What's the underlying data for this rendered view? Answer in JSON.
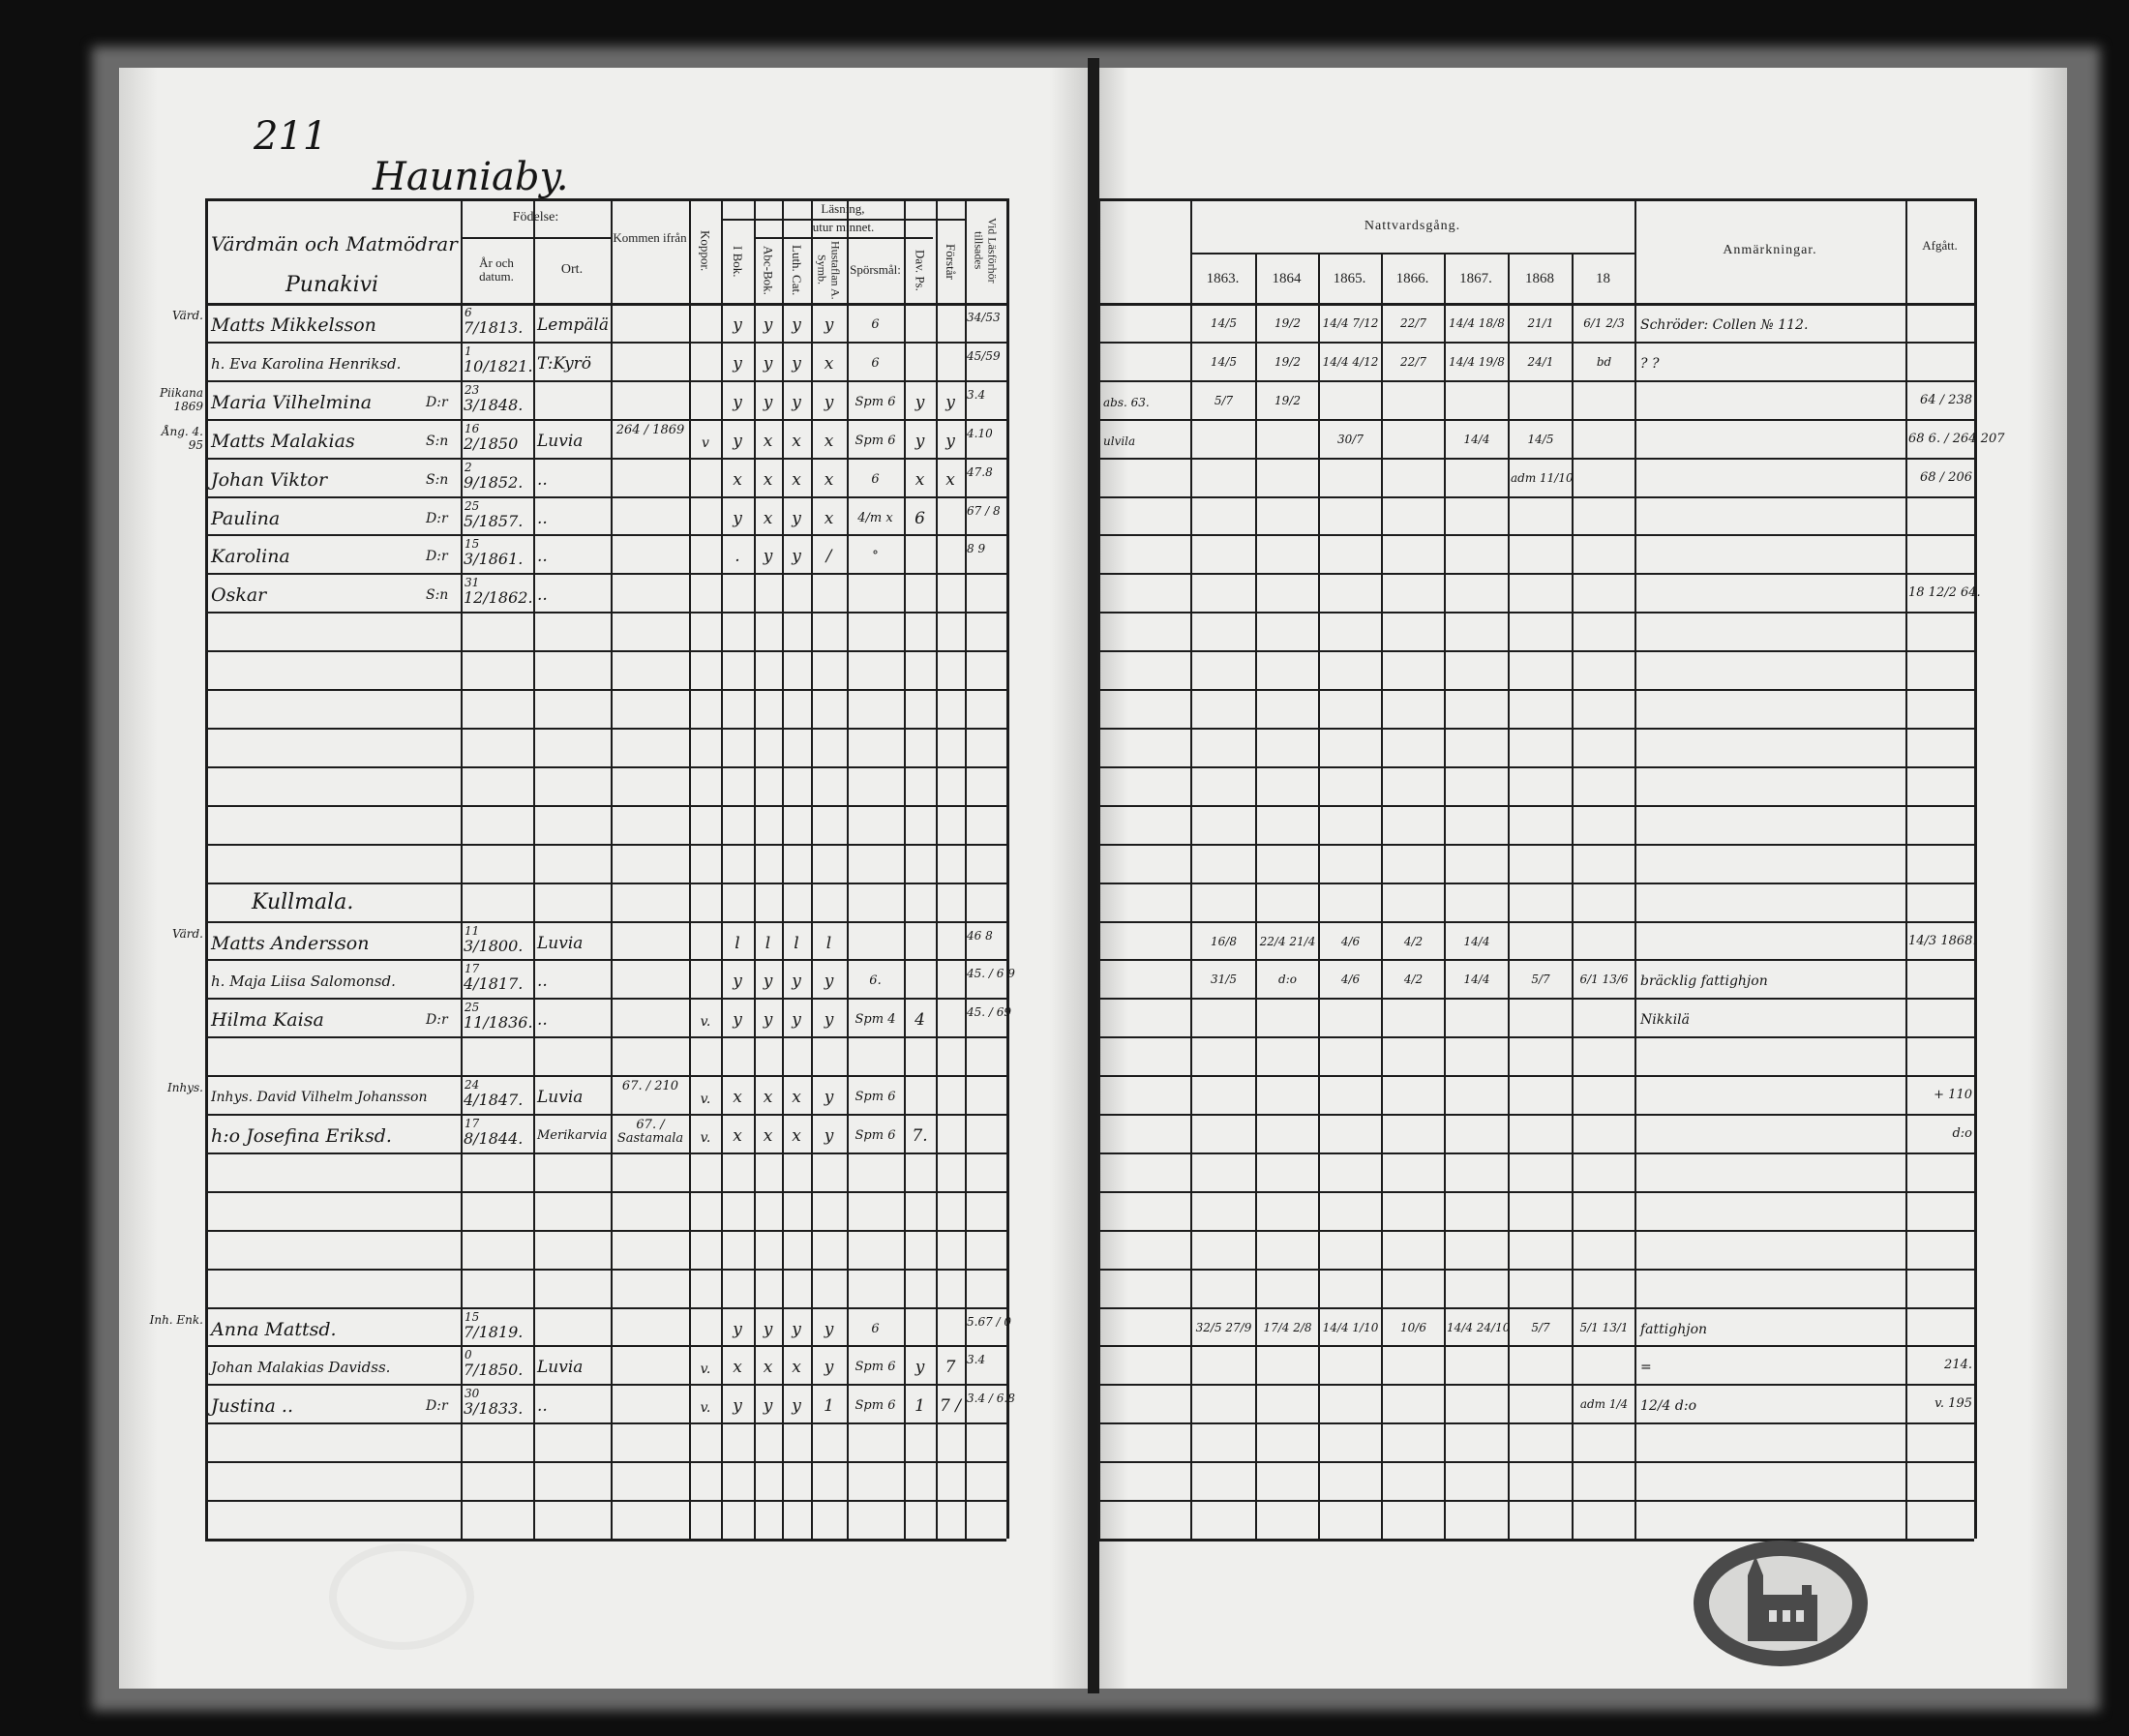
{
  "page_number": "211",
  "village_title": "Hauniaby.",
  "left_header": {
    "name_col": "Värdmän och Matmödrar",
    "name_sub": "Punakivi",
    "birth": "Födelse:",
    "birth_year": "År och datum.",
    "birth_place": "Ort.",
    "came_from": "Kommen ifrån",
    "smallpox": "Koppor.",
    "reading": "Läsning,",
    "by_heart": "utur minnet.",
    "in_book": "I Bok.",
    "abc": "Abc-Bok.",
    "catechism": "Luth. Cat.",
    "house_table": "Hustaflan A. Symb.",
    "questions": "Spörsmål:",
    "psalms": "Dav. Ps.",
    "understands": "Förstår",
    "exam": "Vid Läsförhör tillsades"
  },
  "right_header": {
    "communion": "Nattvardsgång.",
    "years": [
      "1863.",
      "1864",
      "1865.",
      "1866.",
      "1867.",
      "1868",
      "18"
    ],
    "remarks": "Anmärkningar.",
    "departed": "Afgått."
  },
  "rows": [
    {
      "row": 0,
      "margin": "Värd.",
      "name": "Matts Mikkelsson",
      "day": "6",
      "date": "7/1813.",
      "ort": "Lempälä",
      "kommen": "",
      "koppor": "",
      "ibok": "y",
      "abc": "y",
      "luth": "y",
      "husfl": "y",
      "spors": "6",
      "dav": "",
      "forstar": "",
      "vid": "34/53",
      "rmargin": "",
      "n": [
        "14/5",
        "19/2",
        "14/4 7/12",
        "22/7",
        "14/4 18/8",
        "21/1",
        "6/1 2/3"
      ],
      "anm": "Schröder: Collen № 112.",
      "afgatt": ""
    },
    {
      "row": 1,
      "margin": "",
      "name": "h. Eva Karolina Henriksd.",
      "day": "1",
      "date": "10/1821.",
      "ort": "T:Kyrö",
      "kommen": "",
      "koppor": "",
      "ibok": "y",
      "abc": "y",
      "luth": "y",
      "husfl": "x",
      "spors": "6",
      "dav": "",
      "forstar": "",
      "vid": "45/59",
      "rmargin": "",
      "n": [
        "14/5",
        "19/2",
        "14/4 4/12",
        "22/7",
        "14/4 19/8",
        "24/1",
        "bd"
      ],
      "anm": "? ?",
      "afgatt": ""
    },
    {
      "row": 2,
      "margin": "Piikana 1869",
      "name": "Maria Vilhelmina",
      "sd": "D:r",
      "day": "23",
      "date": "3/1848.",
      "ort": "",
      "kommen": "",
      "koppor": "",
      "ibok": "y",
      "abc": "y",
      "luth": "y",
      "husfl": "y",
      "spors": "Spm 6",
      "dav": "y",
      "forstar": "y",
      "vid": "3.4",
      "rmargin": "abs. 63.",
      "n": [
        "5/7",
        "19/2",
        "",
        "",
        "",
        "",
        ""
      ],
      "anm": "",
      "afgatt": "64 / 238"
    },
    {
      "row": 3,
      "margin": "Ång. 4. 95",
      "name": "Matts Malakias",
      "sd": "S:n",
      "day": "16",
      "date": "2/1850",
      "ort": "Luvia",
      "kommen": "264 / 1869",
      "koppor": "v",
      "ibok": "y",
      "abc": "x",
      "luth": "x",
      "husfl": "x",
      "spors": "Spm 6",
      "dav": "y",
      "forstar": "y",
      "vid": "4.10",
      "rmargin": "ulvila",
      "n": [
        "",
        "",
        "30/7",
        "",
        "14/4",
        "14/5",
        ""
      ],
      "anm": "",
      "afgatt": "68 6. / 264 207"
    },
    {
      "row": 4,
      "margin": "",
      "name": "Johan Viktor",
      "sd": "S:n",
      "day": "2",
      "date": "9/1852.",
      "ort": "..",
      "kommen": "",
      "koppor": "",
      "ibok": "x",
      "abc": "x",
      "luth": "x",
      "husfl": "x",
      "spors": "6",
      "dav": "x",
      "forstar": "x",
      "vid": "47.8",
      "rmargin": "",
      "n": [
        "",
        "",
        "",
        "",
        "",
        "adm 11/10",
        ""
      ],
      "anm": "",
      "afgatt": "68 / 206"
    },
    {
      "row": 5,
      "margin": "",
      "name": "Paulina",
      "sd": "D:r",
      "day": "25",
      "date": "5/1857.",
      "ort": "..",
      "kommen": "",
      "koppor": "",
      "ibok": "y",
      "abc": "x",
      "luth": "y",
      "husfl": "x",
      "spors": "4/m x",
      "dav": "6",
      "forstar": "",
      "vid": "67 / 8",
      "rmargin": "",
      "n": [
        "",
        "",
        "",
        "",
        "",
        "",
        ""
      ],
      "anm": "",
      "afgatt": ""
    },
    {
      "row": 6,
      "margin": "",
      "name": "Karolina",
      "sd": "D:r",
      "day": "15",
      "date": "3/1861.",
      "ort": "..",
      "kommen": "",
      "koppor": "",
      "ibok": ".",
      "abc": "y",
      "luth": "y",
      "husfl": "/",
      "spors": "°",
      "dav": "",
      "forstar": "",
      "vid": "8 9",
      "rmargin": "",
      "n": [
        "",
        "",
        "",
        "",
        "",
        "",
        ""
      ],
      "anm": "",
      "afgatt": ""
    },
    {
      "row": 7,
      "margin": "",
      "name": "Oskar",
      "sd": "S:n",
      "day": "31",
      "date": "12/1862.",
      "ort": "..",
      "kommen": "",
      "koppor": "",
      "ibok": "",
      "abc": "",
      "luth": "",
      "husfl": "",
      "spors": "",
      "dav": "",
      "forstar": "",
      "vid": "",
      "rmargin": "",
      "n": [
        "",
        "",
        "",
        "",
        "",
        "",
        ""
      ],
      "anm": "",
      "afgatt": "18 12/2 64."
    },
    {
      "row": 15,
      "heading": "Kullmala."
    },
    {
      "row": 16,
      "margin": "Värd.",
      "name": "Matts Andersson",
      "day": "11",
      "date": "3/1800.",
      "ort": "Luvia",
      "kommen": "",
      "koppor": "",
      "ibok": "l",
      "abc": "l",
      "luth": "l",
      "husfl": "l",
      "spors": "",
      "dav": "",
      "forstar": "",
      "vid": "46 8",
      "rmargin": "",
      "n": [
        "16/8",
        "22/4 21/4",
        "4/6",
        "4/2",
        "14/4",
        "",
        ""
      ],
      "anm": "",
      "afgatt": "14/3 1868."
    },
    {
      "row": 17,
      "margin": "",
      "name": "h. Maja Liisa Salomonsd.",
      "day": "17",
      "date": "4/1817.",
      "ort": "..",
      "kommen": "",
      "koppor": "",
      "ibok": "y",
      "abc": "y",
      "luth": "y",
      "husfl": "y",
      "spors": "6.",
      "dav": "",
      "forstar": "",
      "vid": "45. / 6 9",
      "rmargin": "",
      "n": [
        "31/5",
        "d:o",
        "4/6",
        "4/2",
        "14/4",
        "5/7",
        "6/1 13/6"
      ],
      "anm": "bräcklig fattighjon",
      "afgatt": ""
    },
    {
      "row": 18,
      "margin": "",
      "name": "Hilma Kaisa",
      "sd": "D:r",
      "day": "25",
      "date": "11/1836.",
      "ort": "..",
      "kommen": "",
      "koppor": "v.",
      "ibok": "y",
      "abc": "y",
      "luth": "y",
      "husfl": "y",
      "spors": "Spm 4",
      "dav": "4",
      "forstar": "",
      "vid": "45. / 69",
      "rmargin": "",
      "n": [
        "",
        "",
        "",
        "",
        "",
        "",
        ""
      ],
      "anm": "Nikkilä",
      "afgatt": ""
    },
    {
      "row": 20,
      "margin": "Inhys.",
      "name": "Inhys. David Vilhelm Johansson",
      "day": "24",
      "date": "4/1847.",
      "ort": "Luvia",
      "kommen": "67. / 210",
      "koppor": "v.",
      "ibok": "x",
      "abc": "x",
      "luth": "x",
      "husfl": "y",
      "spors": "Spm 6",
      "dav": "",
      "forstar": "",
      "vid": "",
      "rmargin": "",
      "n": [
        "",
        "",
        "",
        "",
        "",
        "",
        ""
      ],
      "anm": "",
      "afgatt": "+ 110"
    },
    {
      "row": 21,
      "margin": "",
      "name": "h:o Josefina Eriksd.",
      "day": "17",
      "date": "8/1844.",
      "ort": "Merikarvia",
      "kommen": "67. / Sastamala",
      "koppor": "v.",
      "ibok": "x",
      "abc": "x",
      "luth": "x",
      "husfl": "y",
      "spors": "Spm 6",
      "dav": "7.",
      "forstar": "",
      "vid": "",
      "rmargin": "",
      "n": [
        "",
        "",
        "",
        "",
        "",
        "",
        ""
      ],
      "anm": "",
      "afgatt": "d:o"
    },
    {
      "row": 26,
      "margin": "Inh. Enk.",
      "name": "Anna Mattsd.",
      "day": "15",
      "date": "7/1819.",
      "ort": "",
      "kommen": "",
      "koppor": "",
      "ibok": "y",
      "abc": "y",
      "luth": "y",
      "husfl": "y",
      "spors": "6",
      "dav": "",
      "forstar": "",
      "vid": "5.67 / 0",
      "rmargin": "",
      "n": [
        "32/5 27/9",
        "17/4 2/8",
        "14/4 1/10",
        "10/6",
        "14/4 24/10",
        "5/7",
        "5/1 13/1"
      ],
      "anm": "fattighjon",
      "afgatt": ""
    },
    {
      "row": 27,
      "margin": "",
      "name": "Johan Malakias Davidss.",
      "day": "0",
      "date": "7/1850.",
      "ort": "Luvia",
      "kommen": "",
      "koppor": "v.",
      "ibok": "x",
      "abc": "x",
      "luth": "x",
      "husfl": "y",
      "spors": "Spm 6",
      "dav": "y",
      "forstar": "7",
      "vid": "3.4",
      "rmargin": "",
      "n": [
        "",
        "",
        "",
        "",
        "",
        "",
        ""
      ],
      "anm": "=",
      "afgatt": "214."
    },
    {
      "row": 28,
      "margin": "",
      "name": "Justina ..",
      "sd": "D:r",
      "day": "30",
      "date": "3/1833.",
      "ort": "..",
      "kommen": "",
      "koppor": "v.",
      "ibok": "y",
      "abc": "y",
      "luth": "y",
      "husfl": "1",
      "spors": "Spm 6",
      "dav": "1",
      "forstar": "7 /",
      "vid": "3.4 / 6.8",
      "rmargin": "",
      "n": [
        "",
        "",
        "",
        "",
        "",
        "",
        "adm 1/4"
      ],
      "anm": "12/4 d:o",
      "afgatt": "v. 195"
    }
  ],
  "colors": {
    "ink": "#161616",
    "paper": "#ececea",
    "background": "#0e0e0e",
    "stamp": "#4a4a4a"
  }
}
